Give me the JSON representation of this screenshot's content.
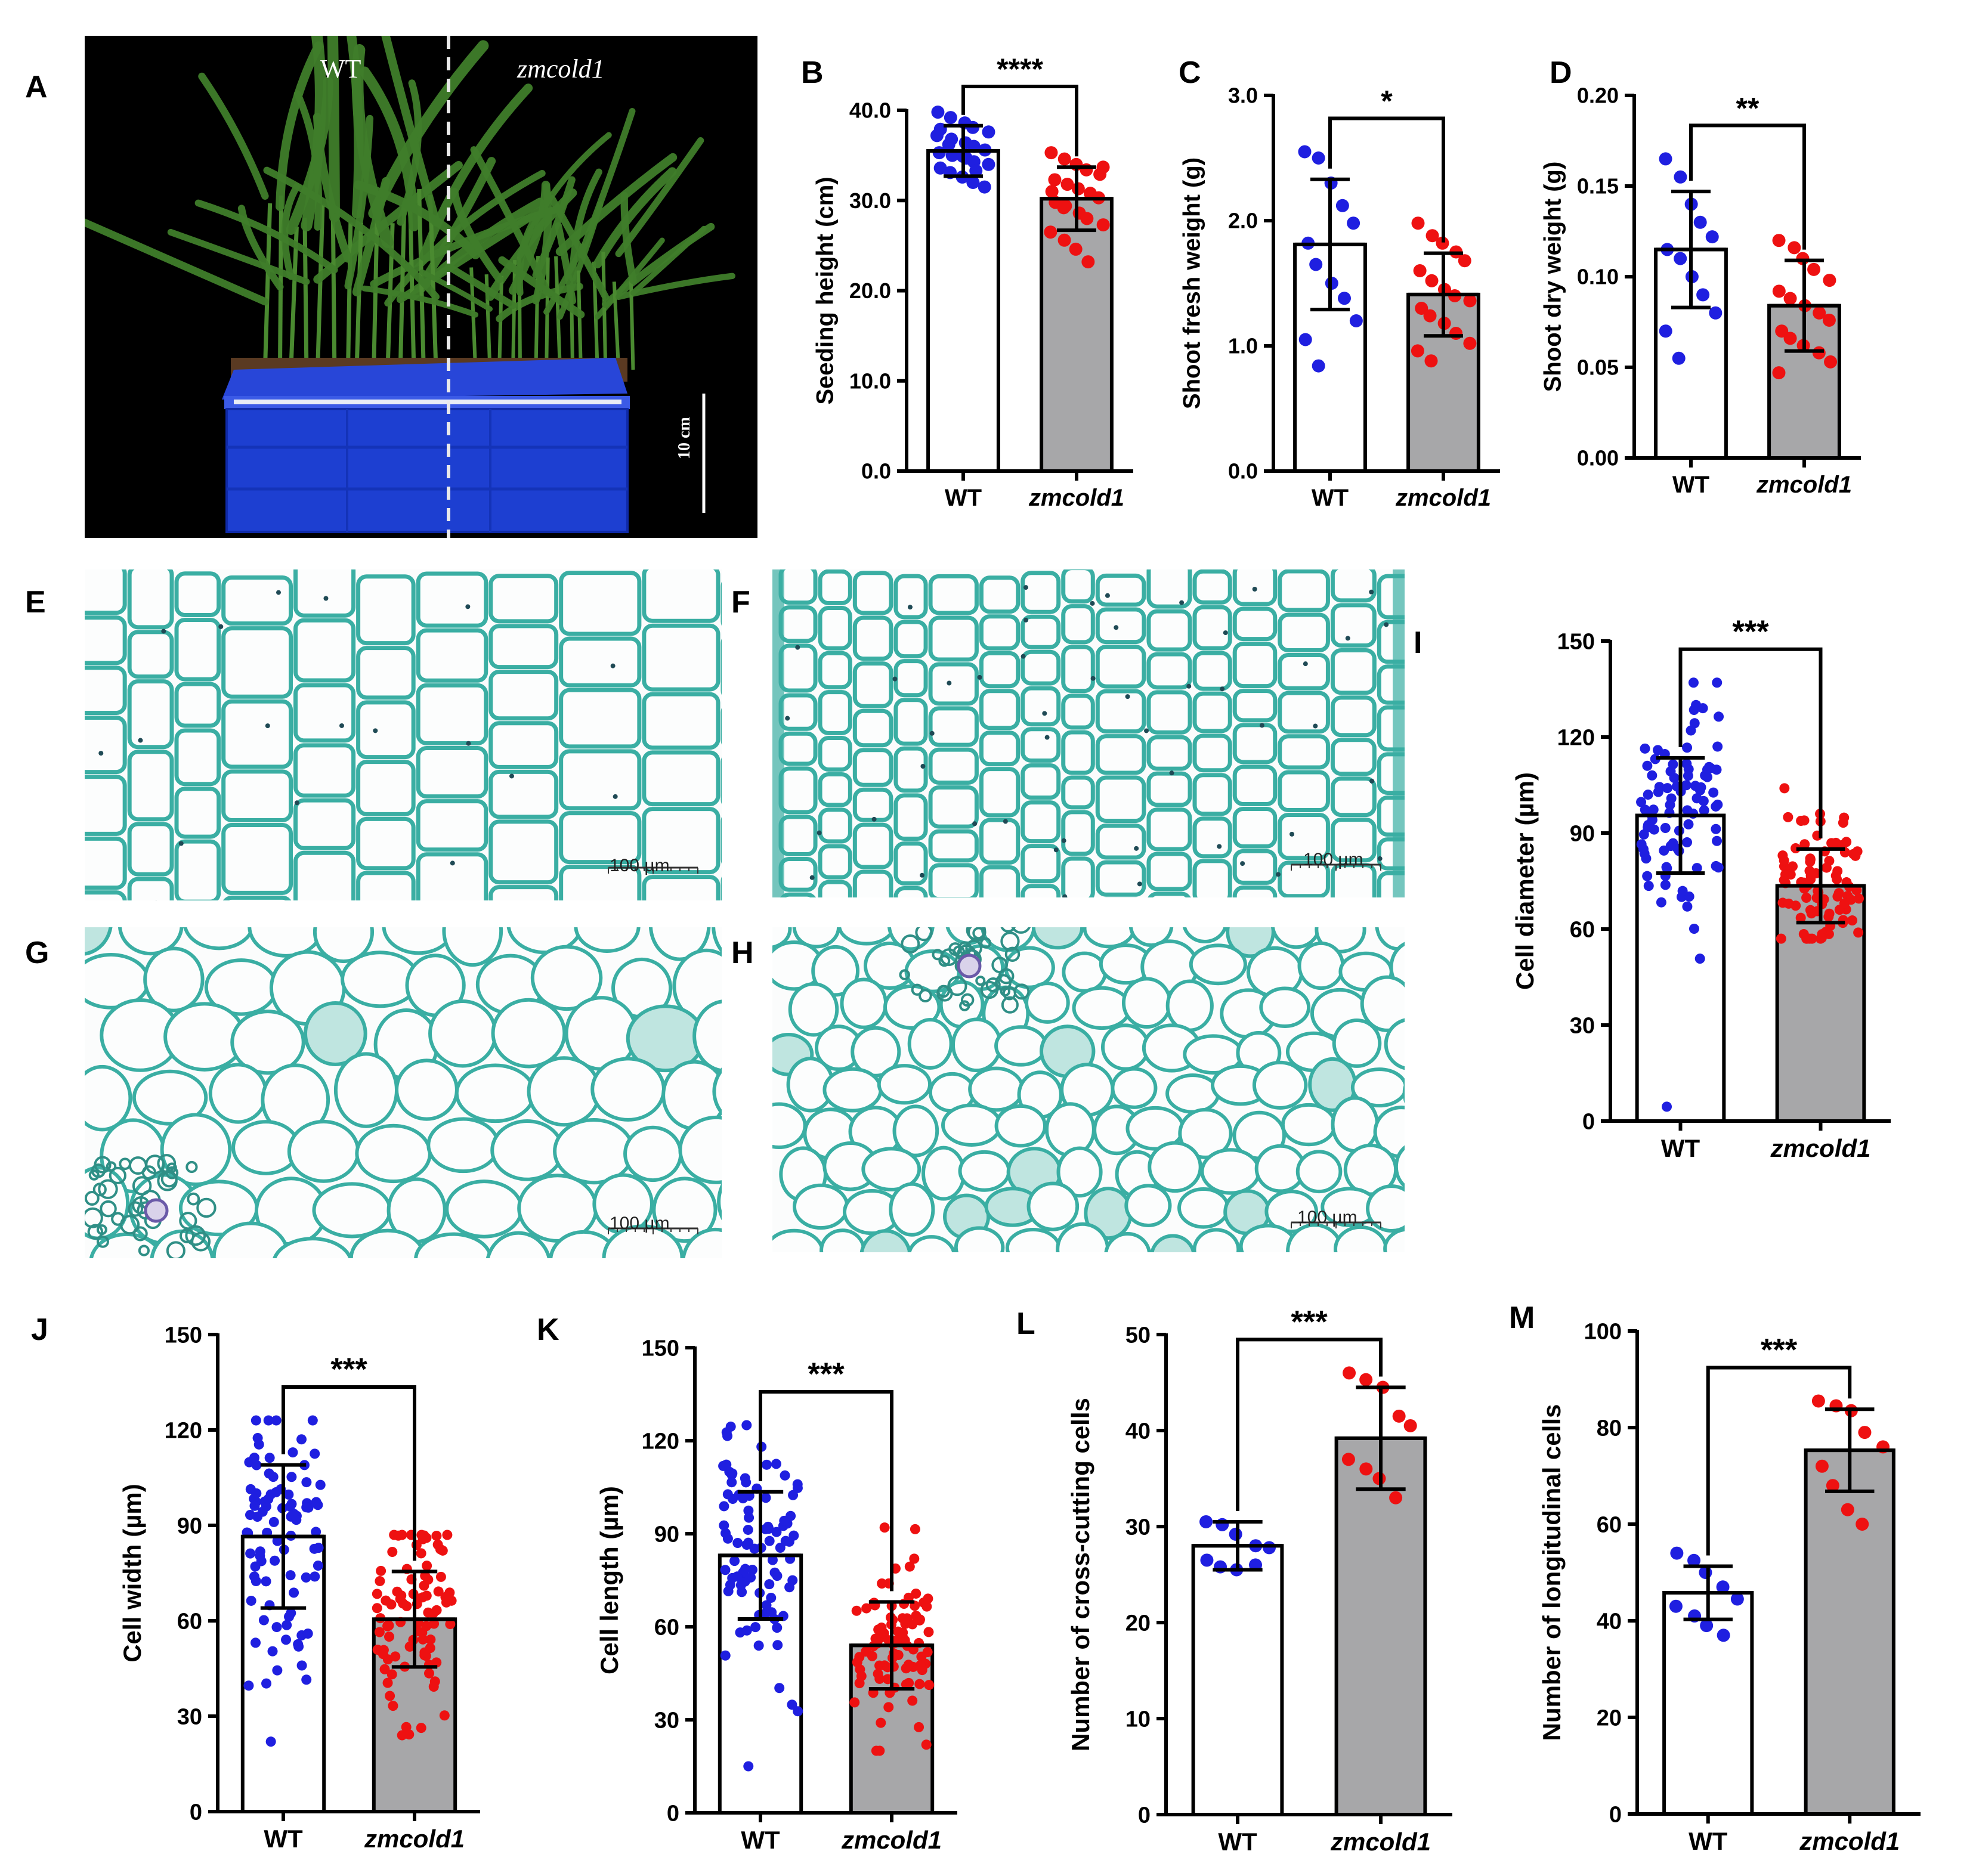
{
  "panel_labels": [
    "A",
    "B",
    "C",
    "D",
    "E",
    "F",
    "G",
    "H",
    "I",
    "J",
    "K",
    "L",
    "M"
  ],
  "photo_a": {
    "left_label": "WT",
    "right_label": "zmcold1",
    "scale_label": "10 cm",
    "colors": {
      "background": "#000000",
      "tray": "#1d3fd1",
      "leaf": "#3f7d2a"
    }
  },
  "micrographs": {
    "scale_label": "100 µm",
    "colors": {
      "background": "#fbfcfc",
      "wall": "#3aaea3"
    }
  },
  "colors": {
    "wt_dot": "#1f1fe0",
    "mut_dot": "#ee1111",
    "mut_bar": "#a7a7a9",
    "wt_bar": "#ffffff"
  },
  "chart_data": [
    {
      "id": "B",
      "type": "bar",
      "categories": [
        "WT",
        "zmcold1"
      ],
      "ylabel": "Seeding height (cm)",
      "ylim": [
        0,
        40
      ],
      "yticks": [
        0,
        10,
        20,
        30,
        40
      ],
      "tick_labels": [
        "0.0",
        "10.0",
        "20.0",
        "30.0",
        "40.0"
      ],
      "significance": "****",
      "series": [
        {
          "name": "WT",
          "mean": 35.5,
          "sd": 2.8,
          "points": [
            39.8,
            39.2,
            38.6,
            38.1,
            37.6,
            37.2,
            36.8,
            36.4,
            36.0,
            35.6,
            35.3,
            35.0,
            34.7,
            34.3,
            34.0,
            33.6,
            33.1,
            32.6,
            32.0,
            31.5,
            37.9,
            36.2,
            34.9,
            33.3
          ]
        },
        {
          "name": "zmcold1",
          "mean": 30.2,
          "sd": 3.5,
          "points": [
            35.3,
            34.6,
            34.0,
            33.4,
            32.9,
            32.3,
            31.8,
            31.3,
            30.8,
            30.3,
            29.8,
            29.2,
            28.6,
            28.0,
            27.3,
            26.5,
            25.6,
            24.6,
            23.2,
            33.7,
            31.0,
            29.4
          ]
        }
      ]
    },
    {
      "id": "C",
      "type": "bar",
      "categories": [
        "WT",
        "zmcold1"
      ],
      "ylabel": "Shoot fresh weight (g)",
      "ylim": [
        0,
        3
      ],
      "yticks": [
        0,
        1,
        2,
        3
      ],
      "tick_labels": [
        "0.0",
        "1.0",
        "2.0",
        "3.0"
      ],
      "significance": "*",
      "series": [
        {
          "name": "WT",
          "mean": 1.81,
          "sd": 0.52,
          "points": [
            2.55,
            2.5,
            2.3,
            2.12,
            1.98,
            1.82,
            1.65,
            1.5,
            1.38,
            1.2,
            1.05,
            0.84
          ]
        },
        {
          "name": "zmcold1",
          "mean": 1.41,
          "sd": 0.33,
          "points": [
            1.98,
            1.88,
            1.82,
            1.75,
            1.68,
            1.6,
            1.52,
            1.45,
            1.4,
            1.36,
            1.3,
            1.24,
            1.18,
            1.1,
            1.02,
            0.96,
            0.88
          ]
        }
      ]
    },
    {
      "id": "D",
      "type": "bar",
      "categories": [
        "WT",
        "zmcold1"
      ],
      "ylabel": "Shoot dry weight (g)",
      "ylim": [
        0,
        0.2
      ],
      "yticks": [
        0,
        0.05,
        0.1,
        0.15,
        0.2
      ],
      "tick_labels": [
        "0.00",
        "0.05",
        "0.10",
        "0.15",
        "0.20"
      ],
      "significance": "**",
      "series": [
        {
          "name": "WT",
          "mean": 0.115,
          "sd": 0.032,
          "points": [
            0.165,
            0.155,
            0.14,
            0.13,
            0.122,
            0.115,
            0.11,
            0.1,
            0.09,
            0.08,
            0.07,
            0.055
          ]
        },
        {
          "name": "zmcold1",
          "mean": 0.084,
          "sd": 0.025,
          "points": [
            0.12,
            0.116,
            0.11,
            0.104,
            0.098,
            0.092,
            0.088,
            0.084,
            0.08,
            0.076,
            0.07,
            0.066,
            0.062,
            0.058,
            0.053,
            0.047
          ]
        }
      ]
    },
    {
      "id": "I",
      "type": "bar",
      "categories": [
        "WT",
        "zmcold1"
      ],
      "ylabel": "Cell diameter (µm)",
      "ylim": [
        0,
        150
      ],
      "yticks": [
        0,
        30,
        60,
        90,
        120,
        150
      ],
      "tick_labels": [
        "0",
        "30",
        "60",
        "90",
        "120",
        "150"
      ],
      "significance": "***",
      "series": [
        {
          "name": "WT",
          "mean": 95.5,
          "sd": 18.0,
          "n": 90,
          "min": 4.5,
          "max": 137
        },
        {
          "name": "zmcold1",
          "mean": 73.5,
          "sd": 11.5,
          "n": 90,
          "min": 57,
          "max": 104
        }
      ]
    },
    {
      "id": "J",
      "type": "bar",
      "categories": [
        "WT",
        "zmcold1"
      ],
      "ylabel": "Cell width (µm)",
      "ylim": [
        0,
        150
      ],
      "yticks": [
        0,
        30,
        60,
        90,
        120,
        150
      ],
      "tick_labels": [
        "0",
        "30",
        "60",
        "90",
        "120",
        "150"
      ],
      "significance": "***",
      "series": [
        {
          "name": "WT",
          "mean": 86.5,
          "sd": 22.5,
          "n": 90,
          "min": 22,
          "max": 123
        },
        {
          "name": "zmcold1",
          "mean": 60.5,
          "sd": 15.0,
          "n": 90,
          "min": 24,
          "max": 87
        }
      ]
    },
    {
      "id": "K",
      "type": "bar",
      "categories": [
        "WT",
        "zmcold1"
      ],
      "ylabel": "Cell length (µm)",
      "ylim": [
        0,
        150
      ],
      "yticks": [
        0,
        30,
        60,
        90,
        120,
        150
      ],
      "tick_labels": [
        "0",
        "30",
        "60",
        "90",
        "120",
        "150"
      ],
      "significance": "***",
      "series": [
        {
          "name": "WT",
          "mean": 83.0,
          "sd": 20.5,
          "n": 90,
          "min": 15,
          "max": 125
        },
        {
          "name": "zmcold1",
          "mean": 54.0,
          "sd": 14.0,
          "n": 90,
          "min": 20,
          "max": 92
        }
      ]
    },
    {
      "id": "L",
      "type": "bar",
      "categories": [
        "WT",
        "zmcold1"
      ],
      "ylabel": "Number of cross-cutting cells",
      "ylim": [
        0,
        50
      ],
      "yticks": [
        0,
        10,
        20,
        30,
        40,
        50
      ],
      "tick_labels": [
        "0",
        "10",
        "20",
        "30",
        "40",
        "50"
      ],
      "significance": "***",
      "series": [
        {
          "name": "WT",
          "mean": 28.0,
          "sd": 2.5,
          "points": [
            30.5,
            30.2,
            29.2,
            28.0,
            27.8,
            26.5,
            25.8,
            25.5,
            26.0
          ]
        },
        {
          "name": "zmcold1",
          "mean": 39.2,
          "sd": 5.3,
          "points": [
            46.0,
            45.3,
            44.5,
            41.5,
            40.5,
            37.0,
            36.0,
            35.0,
            33.0
          ]
        }
      ]
    },
    {
      "id": "M",
      "type": "bar",
      "categories": [
        "WT",
        "zmcold1"
      ],
      "ylabel": "Number of longitudinal cells",
      "ylim": [
        0,
        100
      ],
      "yticks": [
        0,
        20,
        40,
        60,
        80,
        100
      ],
      "tick_labels": [
        "0",
        "20",
        "40",
        "60",
        "80",
        "100"
      ],
      "significance": "***",
      "series": [
        {
          "name": "WT",
          "mean": 45.8,
          "sd": 5.5,
          "points": [
            54.0,
            52.5,
            50.0,
            47.0,
            44.5,
            43.0,
            41.0,
            39.0,
            37.0
          ]
        },
        {
          "name": "zmcold1",
          "mean": 75.3,
          "sd": 8.5,
          "points": [
            85.5,
            84.5,
            83.5,
            79.0,
            76.0,
            72.0,
            68.0,
            63.0,
            60.0
          ]
        }
      ]
    }
  ]
}
